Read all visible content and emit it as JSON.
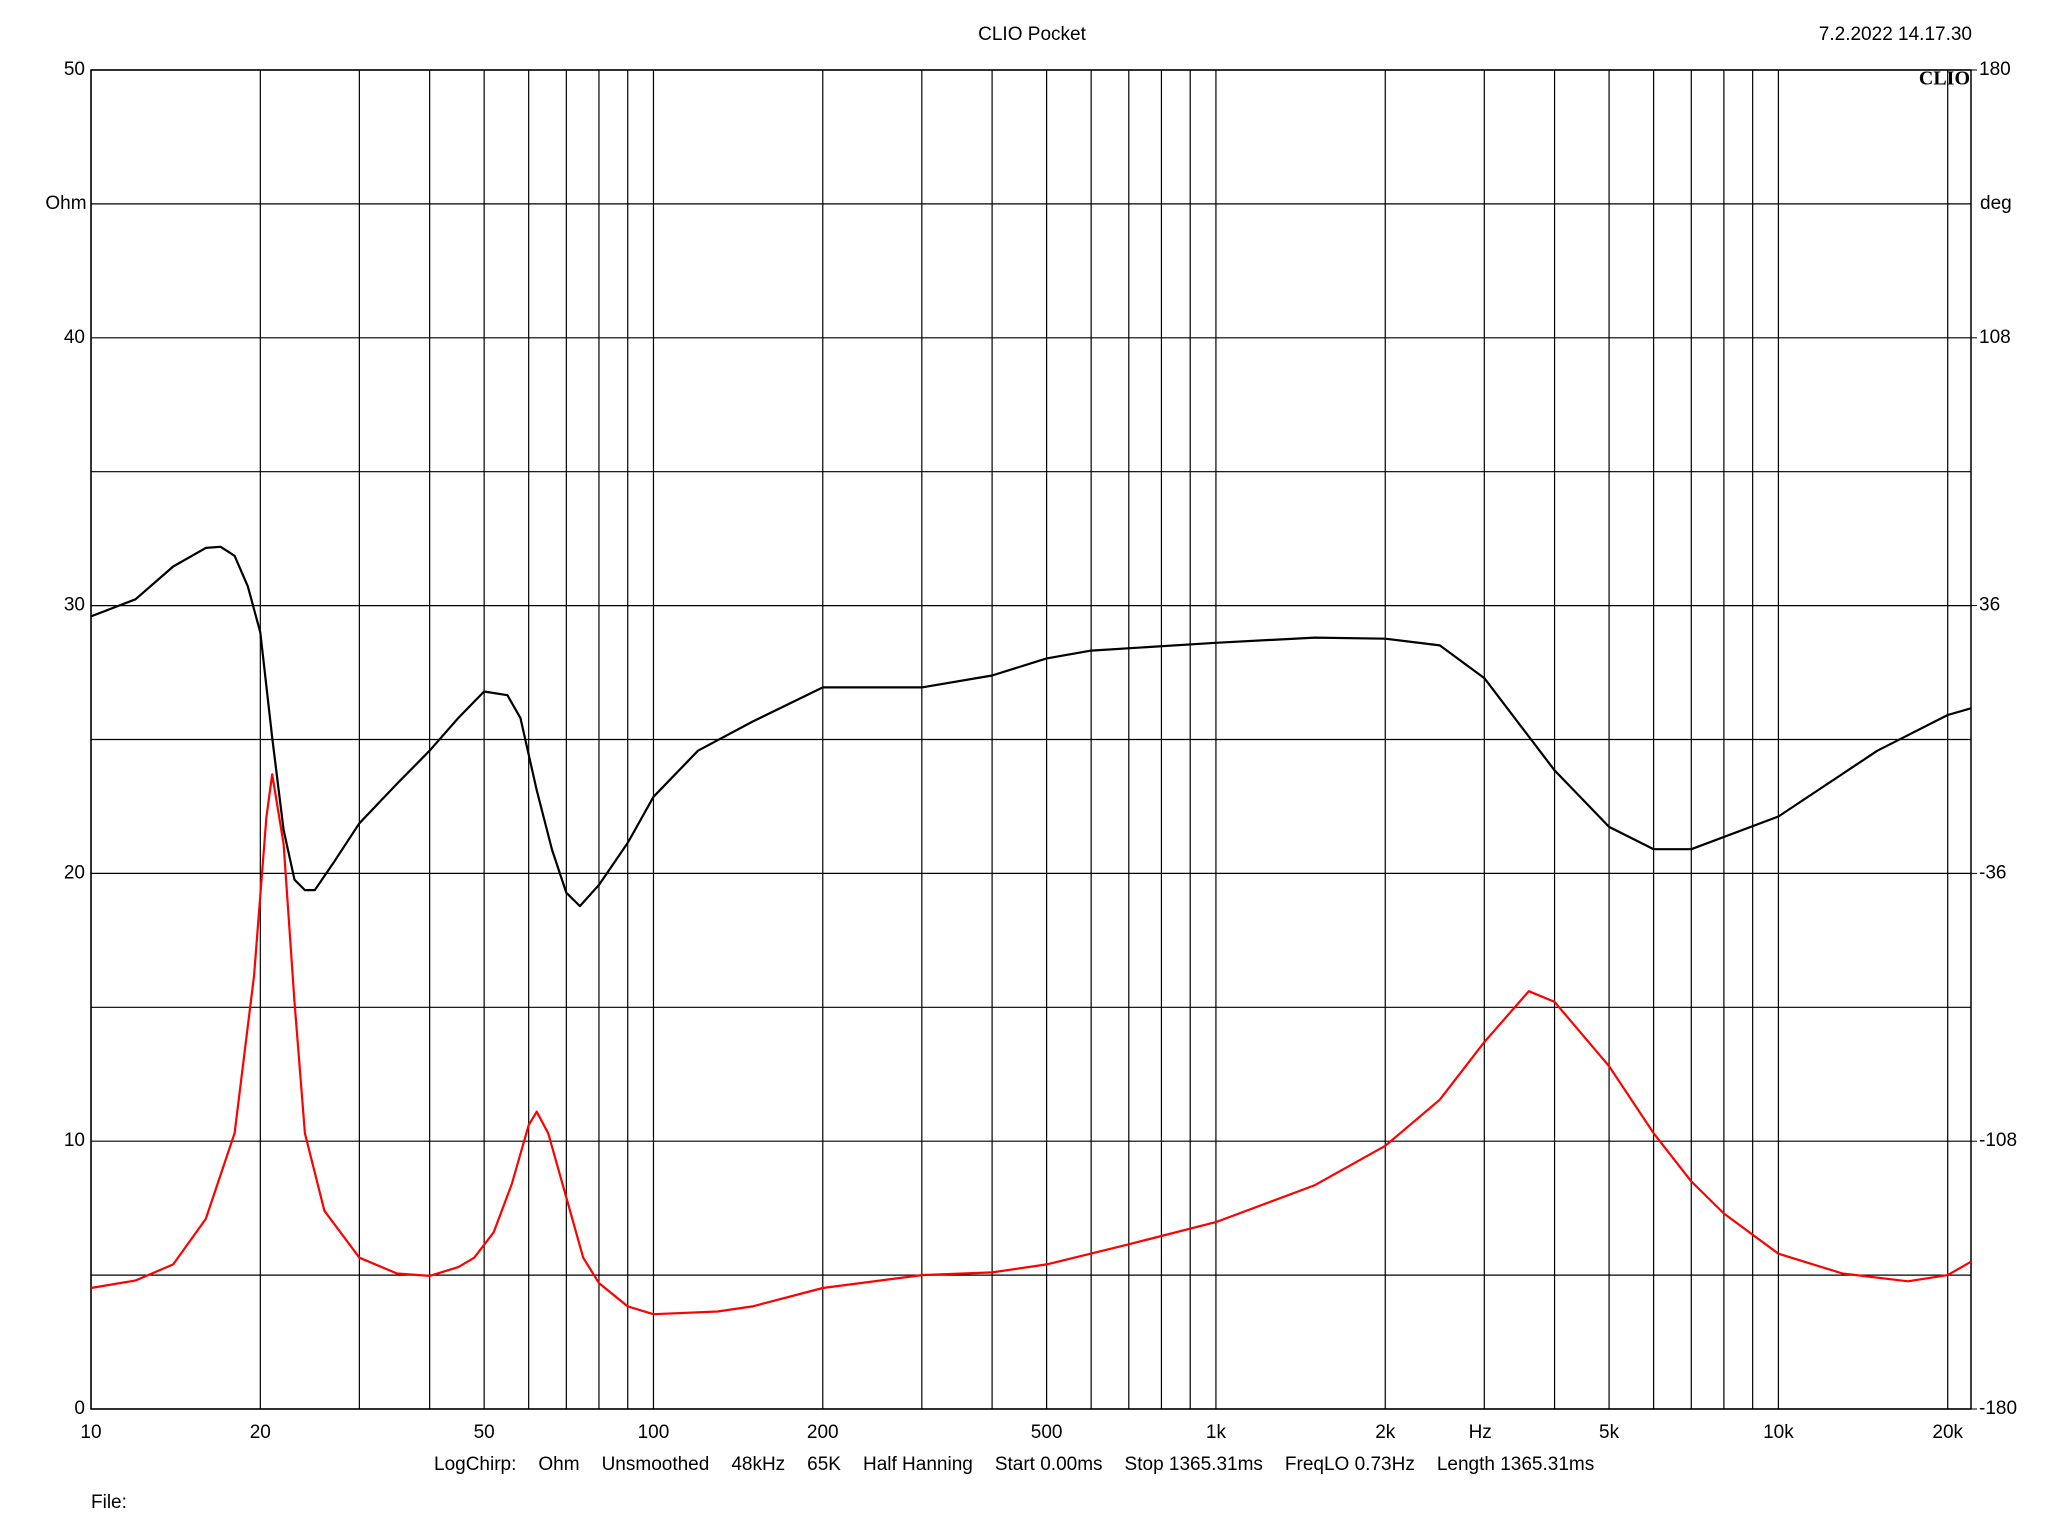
{
  "chart_data": {
    "type": "line",
    "title": "CLIO Pocket",
    "timestamp": "7.2.2022 14.17.30",
    "logo": "CLIO",
    "ylabel": "Ohm",
    "y2label": "deg",
    "xlabel": "Hz",
    "xscale": "log",
    "grid": true,
    "xlim": [
      10,
      22000
    ],
    "ylim": [
      0,
      50
    ],
    "y2lim": [
      -180,
      180
    ],
    "xticks": [
      10,
      20,
      50,
      100,
      200,
      500,
      {
        "value": 1000,
        "label": "1k"
      },
      {
        "value": 2000,
        "label": "2k"
      },
      {
        "value": 5000,
        "label": "5k"
      },
      {
        "value": 10000,
        "label": "10k"
      },
      {
        "value": 20000,
        "label": "20k"
      }
    ],
    "xgrid_minor": [
      30,
      40,
      60,
      70,
      80,
      90,
      300,
      400,
      600,
      700,
      800,
      900,
      3000,
      4000,
      6000,
      7000,
      8000,
      9000
    ],
    "yticks": [
      0,
      10,
      20,
      30,
      40,
      50
    ],
    "ygrid_minor": [
      5,
      15,
      25,
      35,
      45
    ],
    "y2ticks": [
      -180,
      -108,
      -36,
      36,
      108,
      180
    ],
    "series": [
      {
        "name": "Ohm",
        "color": "#ff0000",
        "axis": "y",
        "x": [
          10,
          12,
          14,
          16,
          18,
          19.5,
          20.5,
          21,
          22,
          23,
          24,
          26,
          30,
          35,
          40,
          45,
          48,
          52,
          56,
          60,
          62,
          65,
          70,
          75,
          80,
          90,
          100,
          130,
          150,
          200,
          300,
          400,
          500,
          700,
          1000,
          1500,
          2000,
          2500,
          3000,
          3600,
          4000,
          5000,
          6000,
          7000,
          8000,
          10000,
          13000,
          17000,
          20000,
          22000
        ],
        "values": [
          4.52,
          4.8,
          5.4,
          7.1,
          10.3,
          16.2,
          22.1,
          23.7,
          21.1,
          15.2,
          10.3,
          7.4,
          5.65,
          5.06,
          4.97,
          5.3,
          5.65,
          6.6,
          8.4,
          10.6,
          11.1,
          10.3,
          7.9,
          5.65,
          4.7,
          3.83,
          3.54,
          3.64,
          3.83,
          4.52,
          5.0,
          5.1,
          5.4,
          6.15,
          6.98,
          8.36,
          9.83,
          11.55,
          13.7,
          15.6,
          15.2,
          12.8,
          10.3,
          8.5,
          7.3,
          5.8,
          5.06,
          4.77,
          5.0,
          5.5
        ]
      },
      {
        "name": "deg",
        "color": "#000000",
        "axis": "y2",
        "x": [
          10,
          12,
          14,
          16,
          17,
          18,
          19,
          20,
          21,
          22,
          23,
          24,
          25,
          27,
          30,
          35,
          40,
          45,
          50,
          55,
          58,
          62,
          66,
          70,
          74,
          80,
          90,
          100,
          120,
          150,
          200,
          300,
          400,
          500,
          600,
          1000,
          1500,
          2000,
          2500,
          3000,
          4000,
          5000,
          6000,
          7000,
          10000,
          15000,
          20000,
          22000
        ],
        "values": [
          33.1,
          37.7,
          46.5,
          51.5,
          51.8,
          49.4,
          41.2,
          28.8,
          0.5,
          -24.3,
          -37.7,
          -40.5,
          -40.5,
          -33.1,
          -22.5,
          -11.9,
          -3.0,
          5.8,
          12.9,
          11.9,
          5.8,
          -13.6,
          -29.6,
          -41.2,
          -44.8,
          -39.1,
          -27.8,
          -15.4,
          -3.0,
          4.8,
          14.0,
          14.0,
          17.2,
          21.8,
          23.9,
          26.0,
          27.4,
          27.1,
          25.3,
          16.5,
          -8.3,
          -23.5,
          -29.5,
          -29.5,
          -20.7,
          -3.0,
          6.6,
          8.4
        ]
      }
    ],
    "footer": [
      "LogChirp:",
      "Ohm",
      "Unsmoothed",
      "48kHz",
      "65K",
      "Half Hanning",
      "Start 0.00ms",
      "Stop 1365.31ms",
      "FreqLO 0.73Hz",
      "Length 1365.31ms"
    ],
    "file_label": "File:"
  }
}
